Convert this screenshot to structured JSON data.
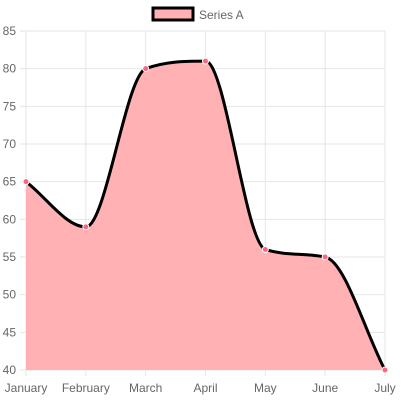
{
  "chart_data": {
    "type": "area",
    "categories": [
      "January",
      "February",
      "March",
      "April",
      "May",
      "June",
      "July"
    ],
    "series": [
      {
        "name": "Series A",
        "values": [
          65,
          59,
          80,
          81,
          56,
          55,
          40
        ],
        "fill_color": "#ffb1b4",
        "line_color": "#000000",
        "point_color": "#ff6384"
      }
    ],
    "ylim": [
      40,
      85
    ],
    "yticks": [
      40,
      45,
      50,
      55,
      60,
      65,
      70,
      75,
      80,
      85
    ],
    "grid": true,
    "legend": "top",
    "smooth": true,
    "title": "",
    "xlabel": "",
    "ylabel": ""
  }
}
